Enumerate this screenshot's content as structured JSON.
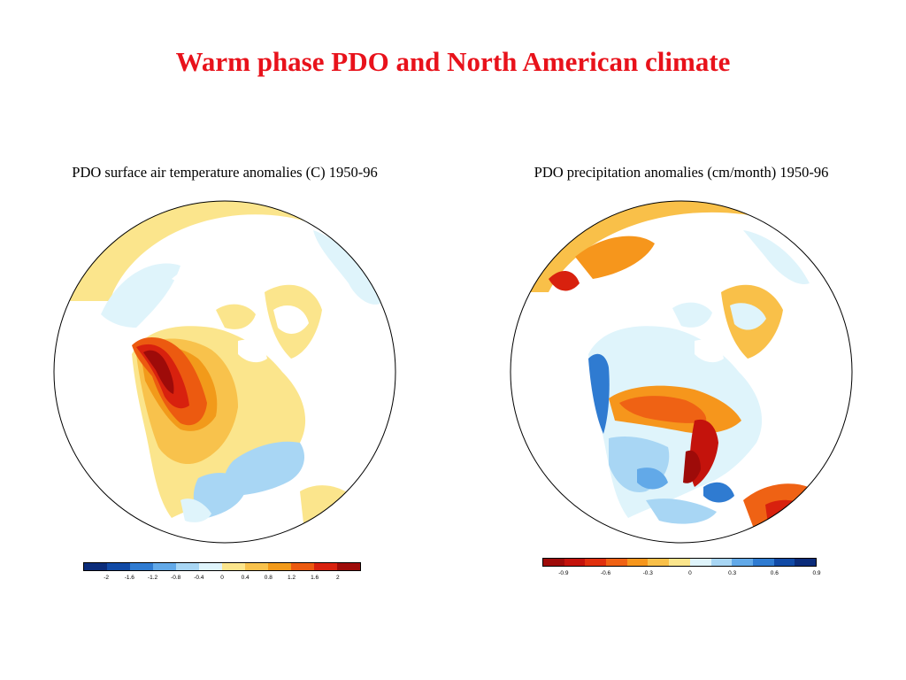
{
  "page_title": "Warm phase PDO and North American climate",
  "panels": {
    "temperature": {
      "title": "PDO surface air temperature anomalies (C) 1950-96",
      "colorbar": {
        "colors": [
          "#0b2c7a",
          "#114aa6",
          "#2f7bd1",
          "#62a9e8",
          "#a8d6f4",
          "#dff4fb",
          "#fbe58c",
          "#f8c24c",
          "#f29a1a",
          "#ec5a10",
          "#d8210e",
          "#9e0b09"
        ],
        "labels": [
          "-2",
          "-1.6",
          "-1.2",
          "-0.8",
          "-0.4",
          "0",
          "0.4",
          "0.8",
          "1.2",
          "1.6",
          "2"
        ]
      }
    },
    "precipitation": {
      "title": "PDO precipitation anomalies (cm/month) 1950-96",
      "colorbar": {
        "colors": [
          "#9e0b09",
          "#c4130c",
          "#e0300e",
          "#ef6214",
          "#f6961c",
          "#f9c049",
          "#fbe58c",
          "#dff4fb",
          "#a8d6f4",
          "#62a9e8",
          "#2f7bd1",
          "#114aa6",
          "#0b2c7a"
        ],
        "labels": [
          "-0.9",
          "-0.6",
          "-0.3",
          "0",
          "0.3",
          "0.6",
          "0.9"
        ]
      }
    }
  }
}
